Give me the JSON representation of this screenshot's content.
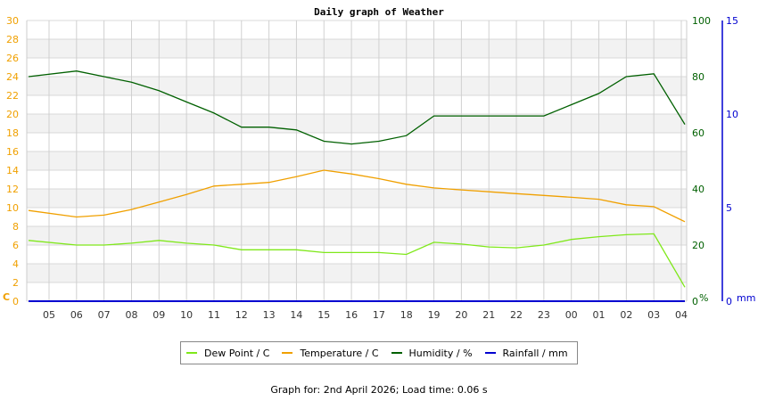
{
  "title": "Daily graph of Weather",
  "footer": "Graph for: 2nd April 2026; Load time: 0.06 s",
  "colors": {
    "dew_point": "#80ff00",
    "temperature": "#f0a000",
    "humidity": "#006000",
    "rainfall": "#0000c0",
    "grid": "#d0d0d0",
    "band": "#f2f2f2"
  },
  "legend": [
    {
      "label": "Dew Point / C",
      "color": "#7fe81a"
    },
    {
      "label": "Temperature / C",
      "color": "#f0a000"
    },
    {
      "label": "Humidity / %",
      "color": "#006000"
    },
    {
      "label": "Rainfall / mm",
      "color": "#0000d0"
    }
  ],
  "chart_data": {
    "type": "line",
    "title": "Daily graph of Weather",
    "x": [
      "05",
      "06",
      "07",
      "08",
      "09",
      "10",
      "11",
      "12",
      "13",
      "14",
      "15",
      "16",
      "17",
      "18",
      "19",
      "20",
      "21",
      "22",
      "23",
      "00",
      "01",
      "02",
      "03",
      "04"
    ],
    "axes": {
      "left": {
        "label": "C",
        "range": [
          0,
          30
        ],
        "ticks": [
          0,
          2,
          4,
          6,
          8,
          10,
          12,
          14,
          16,
          18,
          20,
          22,
          24,
          26,
          28,
          30
        ]
      },
      "right1": {
        "label": "%",
        "range": [
          0,
          100
        ],
        "ticks": [
          0,
          20,
          40,
          60,
          80,
          100
        ]
      },
      "right2": {
        "label": "mm",
        "range": [
          0,
          15
        ],
        "ticks": [
          0,
          5,
          10,
          15
        ]
      }
    },
    "grid": true,
    "legend_position": "bottom",
    "series": [
      {
        "name": "Dew Point / C",
        "axis": "left",
        "values": [
          6.5,
          6.0,
          6.0,
          6.2,
          6.5,
          6.2,
          6.0,
          5.5,
          5.5,
          5.5,
          5.2,
          5.2,
          5.2,
          5.0,
          6.3,
          6.1,
          5.8,
          5.7,
          6.0,
          6.6,
          6.9,
          7.1,
          7.2,
          1.5
        ]
      },
      {
        "name": "Temperature / C",
        "axis": "left",
        "values": [
          9.7,
          9.0,
          9.2,
          9.8,
          10.6,
          11.4,
          12.3,
          12.5,
          12.7,
          13.3,
          14.0,
          13.6,
          13.1,
          12.5,
          12.1,
          11.9,
          11.7,
          11.5,
          11.3,
          11.1,
          10.9,
          10.3,
          10.1,
          8.5
        ]
      },
      {
        "name": "Humidity / %",
        "axis": "right1",
        "values": [
          80,
          82,
          80,
          78,
          75,
          71,
          67,
          62,
          62,
          61,
          57,
          56,
          57,
          59,
          66,
          66,
          66,
          66,
          66,
          70,
          74,
          80,
          81,
          63
        ]
      },
      {
        "name": "Rainfall / mm",
        "axis": "right2",
        "values": [
          0,
          0,
          0,
          0,
          0,
          0,
          0,
          0,
          0,
          0,
          0,
          0,
          0,
          0,
          0,
          0,
          0,
          0,
          0,
          0,
          0,
          0,
          0,
          0
        ]
      }
    ]
  }
}
